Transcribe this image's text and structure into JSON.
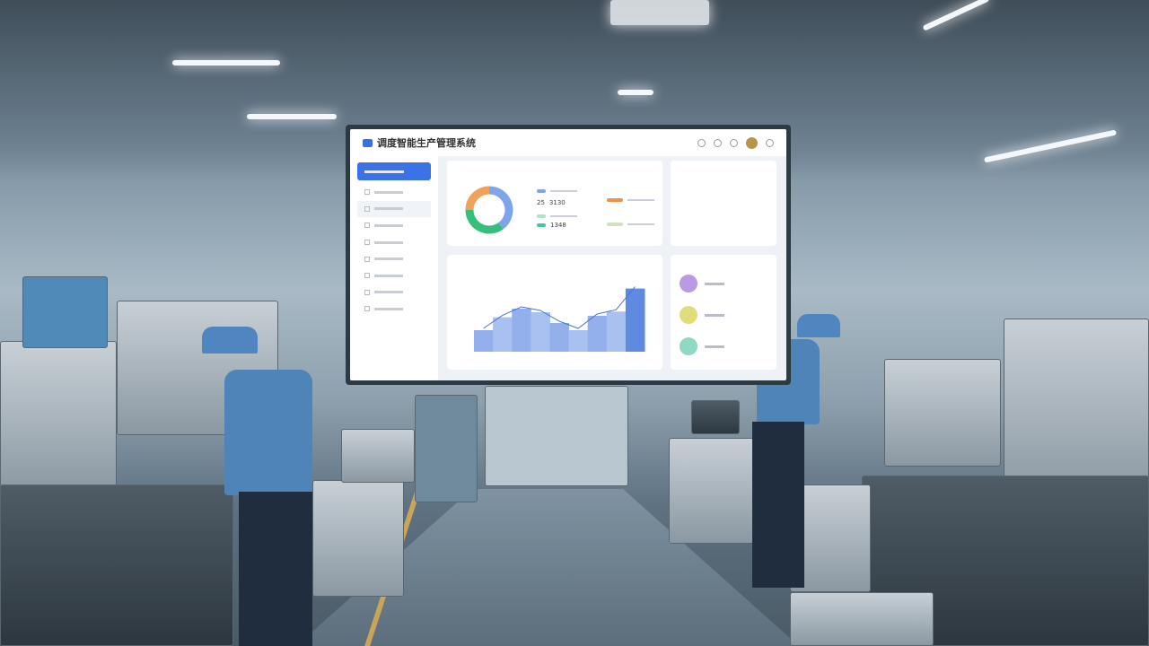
{
  "dashboard": {
    "title": "调度智能生产管理系统",
    "donut": [
      {
        "label": "segment-blue",
        "value": 40,
        "color": "#7ea4ea"
      },
      {
        "label": "segment-green",
        "value": 35,
        "color": "#34c07a"
      },
      {
        "label": "segment-orange",
        "value": 25,
        "color": "#f0a25a"
      }
    ],
    "legend_values": [
      "25",
      "3130",
      "1348"
    ],
    "chart_bars": [
      30,
      48,
      60,
      55,
      40,
      30,
      50,
      56,
      88
    ],
    "colors": {
      "accent": "#3b73e6",
      "kpi": [
        "#b99be3",
        "#e3dc7c",
        "#8fd9c4"
      ]
    }
  }
}
